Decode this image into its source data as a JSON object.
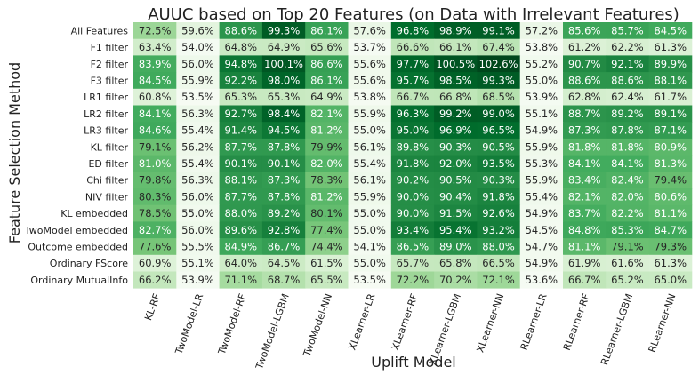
{
  "chart_data": {
    "type": "heatmap",
    "title": "AUUC based on Top 20 Features (on Data with Irrelevant Features)",
    "xlabel": "Uplift Model",
    "ylabel": "Feature Selection Method",
    "columns": [
      "KL-RF",
      "TwoModel-LR",
      "TwoModel-RF",
      "TwoModel-LGBM",
      "TwoModel-NN",
      "XLearner-LR",
      "XLearner-RF",
      "XLearner-LGBM",
      "XLearner-NN",
      "RLearner-LR",
      "RLearner-RF",
      "RLearner-LGBM",
      "RLearner-NN"
    ],
    "rows": [
      "All Features",
      "F1 filter",
      "F2 filter",
      "F3 filter",
      "LR1 filter",
      "LR2 filter",
      "LR3 filter",
      "KL filter",
      "ED filter",
      "Chi filter",
      "NIV filter",
      "KL embedded",
      "TwoModel embedded",
      "Outcome embedded",
      "Ordinary FScore",
      "Ordinary MutualInfo"
    ],
    "values": [
      [
        72.5,
        59.6,
        88.6,
        99.3,
        86.1,
        57.6,
        96.8,
        98.9,
        99.1,
        57.2,
        85.6,
        85.7,
        84.5
      ],
      [
        63.4,
        54.0,
        64.8,
        64.9,
        65.6,
        53.7,
        66.6,
        66.1,
        67.4,
        53.8,
        61.2,
        62.2,
        61.3
      ],
      [
        83.9,
        56.0,
        94.8,
        100.1,
        86.6,
        55.6,
        97.7,
        100.5,
        102.6,
        55.2,
        90.7,
        92.1,
        89.9
      ],
      [
        84.5,
        55.9,
        92.2,
        98.0,
        86.1,
        55.6,
        95.7,
        98.5,
        99.3,
        55.0,
        88.6,
        88.6,
        88.1
      ],
      [
        60.8,
        53.5,
        65.3,
        65.3,
        64.9,
        53.8,
        66.7,
        66.8,
        68.5,
        53.9,
        62.8,
        62.4,
        61.7
      ],
      [
        84.1,
        56.3,
        92.7,
        98.4,
        82.1,
        55.9,
        96.3,
        99.2,
        99.0,
        55.1,
        88.7,
        89.2,
        89.1
      ],
      [
        84.6,
        55.4,
        91.4,
        94.5,
        81.2,
        55.0,
        95.0,
        96.9,
        96.5,
        54.9,
        87.3,
        87.8,
        87.1
      ],
      [
        79.1,
        56.2,
        87.7,
        87.8,
        79.9,
        56.1,
        89.8,
        90.3,
        90.5,
        55.9,
        81.8,
        81.8,
        80.9
      ],
      [
        81.0,
        55.4,
        90.1,
        90.1,
        82.0,
        55.4,
        91.8,
        92.0,
        93.5,
        55.3,
        84.1,
        84.1,
        81.3
      ],
      [
        79.8,
        56.3,
        88.1,
        87.3,
        78.3,
        56.1,
        90.2,
        90.5,
        90.3,
        55.9,
        83.4,
        82.4,
        79.4
      ],
      [
        80.3,
        56.0,
        87.7,
        87.8,
        81.2,
        55.9,
        90.0,
        90.4,
        91.8,
        55.4,
        82.1,
        82.0,
        80.6
      ],
      [
        78.5,
        55.0,
        88.0,
        89.2,
        80.1,
        55.0,
        90.0,
        91.5,
        92.6,
        54.9,
        83.7,
        82.2,
        81.1
      ],
      [
        82.7,
        56.0,
        89.6,
        92.8,
        77.4,
        55.0,
        93.4,
        95.4,
        93.2,
        54.5,
        84.8,
        85.3,
        84.7
      ],
      [
        77.6,
        55.5,
        84.9,
        86.7,
        74.4,
        54.1,
        86.5,
        89.0,
        88.0,
        54.7,
        81.1,
        79.1,
        79.3
      ],
      [
        60.9,
        55.1,
        64.0,
        64.5,
        61.5,
        55.0,
        65.7,
        65.8,
        66.5,
        54.9,
        61.9,
        61.6,
        61.3
      ],
      [
        66.2,
        53.9,
        71.1,
        68.7,
        65.5,
        53.5,
        72.2,
        70.2,
        72.1,
        53.6,
        66.7,
        65.2,
        65.0
      ]
    ],
    "value_format": "percent_1dp",
    "colormap": [
      "#f7fcf5",
      "#e5f5e0",
      "#c7e9c0",
      "#a1d99b",
      "#74c476",
      "#41ab5d",
      "#238b45",
      "#006d2c",
      "#00441b"
    ],
    "color_range": [
      53.0,
      103.0
    ],
    "legend": "none",
    "grid": false
  }
}
